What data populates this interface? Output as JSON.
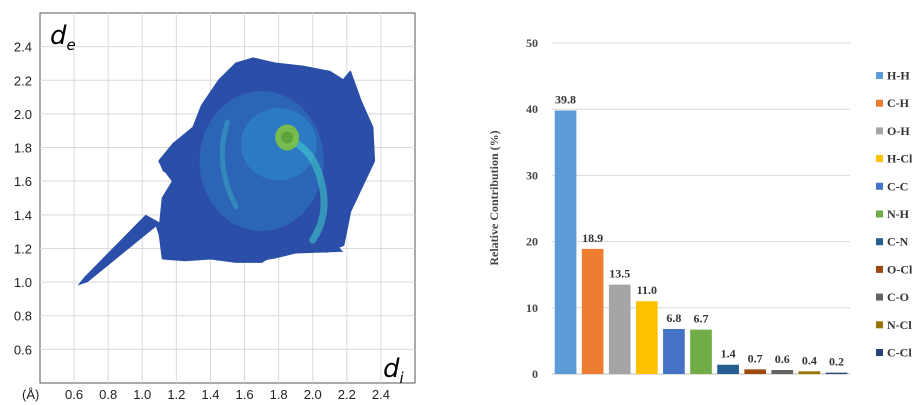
{
  "chart_data": [
    {
      "type": "heatmap",
      "title": "",
      "xlabel": "d",
      "xlabel_sub": "i",
      "ylabel": "d",
      "ylabel_sub": "e",
      "xlim": [
        0.4,
        2.6
      ],
      "ylim": [
        0.4,
        2.6
      ],
      "x_ticks": [
        "0.6",
        "0.8",
        "1.0",
        "1.2",
        "1.4",
        "1.6",
        "1.8",
        "2.0",
        "2.2",
        "2.4"
      ],
      "y_ticks": [
        "0.6",
        "0.8",
        "1.0",
        "1.2",
        "1.4",
        "1.6",
        "1.8",
        "2.0",
        "2.2",
        "2.4"
      ],
      "unit_label": "(Å)",
      "grid": true,
      "colors": {
        "low": "#2b4fa8",
        "mid": "#2d8fd2",
        "high": "#3fd0c8",
        "peak": "#7fc241"
      }
    },
    {
      "type": "bar",
      "title": "",
      "xlabel": "",
      "ylabel": "Relative Contribution (%)",
      "ylim": [
        0,
        50
      ],
      "y_ticks": [
        "0",
        "10",
        "20",
        "30",
        "40",
        "50"
      ],
      "grid": true,
      "legend_position": "right",
      "categories": [
        "H-H",
        "C-H",
        "O-H",
        "H-Cl",
        "C-C",
        "N-H",
        "C-N",
        "O-Cl",
        "C-O",
        "N-Cl",
        "C-Cl"
      ],
      "values": [
        39.8,
        18.9,
        13.5,
        11.0,
        6.8,
        6.7,
        1.4,
        0.7,
        0.6,
        0.4,
        0.2
      ],
      "value_labels": [
        "39.8",
        "18.9",
        "13.5",
        "11.0",
        "6.8",
        "6.7",
        "1.4",
        "0.7",
        "0.6",
        "0.4",
        "0.2"
      ],
      "colors": [
        "#5b9bd5",
        "#ed7d31",
        "#a5a5a5",
        "#ffc000",
        "#4472c4",
        "#70ad47",
        "#255e91",
        "#9e480e",
        "#636363",
        "#997300",
        "#264478"
      ]
    }
  ]
}
